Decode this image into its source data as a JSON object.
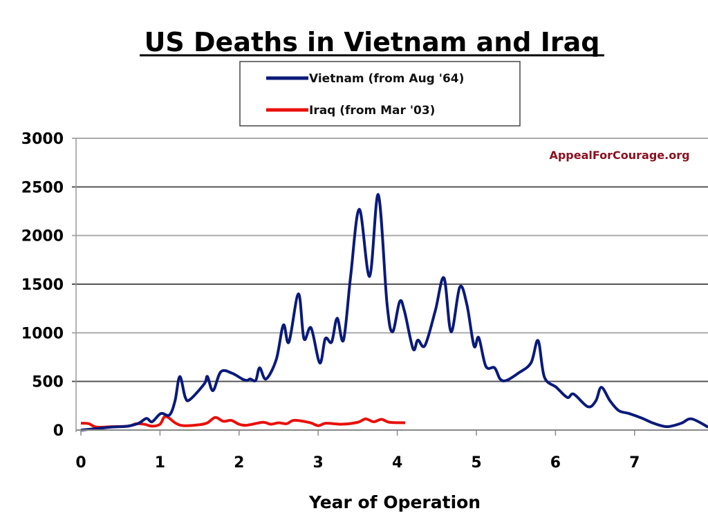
{
  "chart_data": {
    "type": "line",
    "title": "US Deaths in Vietnam and Iraq",
    "xlabel": "Year of Operation",
    "ylabel": "",
    "xlim": [
      0,
      8
    ],
    "ylim": [
      0,
      3000
    ],
    "xticks": [
      0,
      1,
      2,
      3,
      4,
      5,
      6,
      7
    ],
    "yticks": [
      0,
      500,
      1000,
      1500,
      2000,
      2500,
      3000
    ],
    "grid": true,
    "legend_position": "top-center",
    "watermark": "AppealForCourage.org",
    "series": [
      {
        "name": "Vietnam (from Aug '64)",
        "color": "#0a1a7a",
        "x": [
          0,
          0.2,
          0.38,
          0.59,
          0.73,
          0.83,
          0.9,
          1.01,
          1.12,
          1.19,
          1.25,
          1.32,
          1.38,
          1.56,
          1.6,
          1.67,
          1.77,
          1.91,
          2.04,
          2.1,
          2.14,
          2.21,
          2.26,
          2.34,
          2.47,
          2.56,
          2.63,
          2.75,
          2.82,
          2.91,
          3.02,
          3.09,
          3.17,
          3.24,
          3.32,
          3.41,
          3.52,
          3.65,
          3.76,
          3.87,
          3.94,
          4.03,
          4.09,
          4.2,
          4.26,
          4.35,
          4.48,
          4.59,
          4.68,
          4.79,
          4.88,
          4.97,
          5.03,
          5.12,
          5.23,
          5.3,
          5.38,
          5.53,
          5.69,
          5.78,
          5.86,
          6.01,
          6.15,
          6.23,
          6.41,
          6.51,
          6.58,
          6.69,
          6.8,
          6.93,
          7.1,
          7.24,
          7.41,
          7.59,
          7.72,
          7.93
        ],
        "values": [
          0,
          15,
          30,
          40,
          70,
          120,
          85,
          170,
          155,
          300,
          550,
          335,
          315,
          475,
          550,
          405,
          600,
          585,
          525,
          510,
          525,
          510,
          640,
          525,
          725,
          1080,
          905,
          1400,
          940,
          1050,
          690,
          940,
          905,
          1150,
          925,
          1580,
          2270,
          1580,
          2420,
          1300,
          1010,
          1320,
          1225,
          835,
          925,
          870,
          1225,
          1565,
          1010,
          1470,
          1290,
          865,
          950,
          655,
          640,
          525,
          510,
          585,
          690,
          920,
          545,
          440,
          335,
          370,
          240,
          300,
          440,
          300,
          200,
          170,
          120,
          70,
          35,
          70,
          115,
          30
        ]
      },
      {
        "name": "Iraq (from Mar '03)",
        "color": "#e8100a",
        "x": [
          0,
          0.1,
          0.2,
          0.4,
          0.6,
          0.7,
          0.8,
          0.9,
          1.0,
          1.07,
          1.2,
          1.3,
          1.5,
          1.6,
          1.7,
          1.8,
          1.9,
          2.0,
          2.1,
          2.3,
          2.4,
          2.5,
          2.6,
          2.7,
          2.9,
          3.0,
          3.1,
          3.3,
          3.5,
          3.6,
          3.7,
          3.8,
          3.9,
          4.1
        ],
        "values": [
          70,
          65,
          30,
          35,
          40,
          65,
          60,
          40,
          60,
          140,
          70,
          45,
          55,
          75,
          130,
          90,
          100,
          60,
          50,
          80,
          60,
          75,
          65,
          100,
          75,
          45,
          70,
          60,
          80,
          115,
          85,
          110,
          80,
          75
        ]
      }
    ]
  }
}
